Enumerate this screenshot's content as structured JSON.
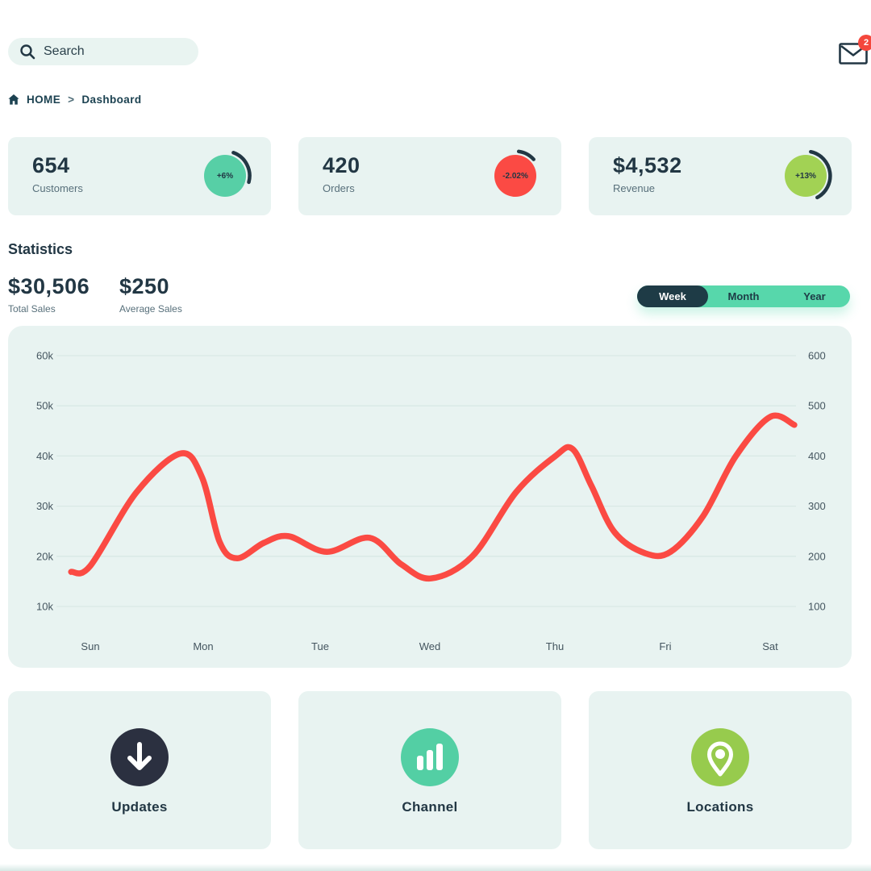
{
  "header": {
    "search_placeholder": "Search",
    "mail_badge": "2"
  },
  "breadcrumb": {
    "home": "HOME",
    "separator": ">",
    "current": "Dashboard"
  },
  "stat_cards": [
    {
      "value": "654",
      "label": "Customers",
      "delta": "+6%",
      "circle_color": "#57cfa6",
      "ring": {
        "start_deg": -70,
        "sweep_deg": 85
      }
    },
    {
      "value": "420",
      "label": "Orders",
      "delta": "-2.02%",
      "circle_color": "#fb4a44",
      "ring": {
        "start_deg": -82,
        "sweep_deg": 40
      }
    },
    {
      "value": "$4,532",
      "label": "Revenue",
      "delta": "+13%",
      "circle_color": "#a2d254",
      "ring": {
        "start_deg": -78,
        "sweep_deg": 140
      }
    }
  ],
  "statistics": {
    "heading": "Statistics",
    "summary": [
      {
        "value": "$30,506",
        "label": "Total Sales"
      },
      {
        "value": "$250",
        "label": "Average Sales"
      }
    ],
    "range_toggle": {
      "options": [
        "Week",
        "Month",
        "Year"
      ],
      "selected": "Week"
    }
  },
  "chart_data": {
    "type": "line",
    "x_labels": [
      "Sun",
      "Mon",
      "Tue",
      "Wed",
      "Thu",
      "Fri",
      "Sat"
    ],
    "series": [
      {
        "name": "Sales",
        "values": [
          18000,
          36000,
          21000,
          16000,
          40000,
          21000,
          48000
        ]
      }
    ],
    "left_axis_ticks": [
      "60k",
      "50k",
      "40k",
      "30k",
      "20k",
      "10k"
    ],
    "right_axis_ticks": [
      "600",
      "500",
      "400",
      "300",
      "200",
      "100"
    ],
    "left_axis_range": [
      10000,
      60000
    ],
    "right_axis_range": [
      100,
      600
    ],
    "grid": true,
    "legend": false,
    "line_color": "#fb4a43",
    "gridline_color": "#d9e9e5",
    "axis_text_color": "#44555f",
    "curve_samples_day_valueK": [
      [
        -0.17,
        16.9
      ],
      [
        0,
        18.1
      ],
      [
        0.41,
        32.8
      ],
      [
        0.8,
        40.5
      ],
      [
        0.99,
        35.7
      ],
      [
        1.14,
        22.9
      ],
      [
        1.29,
        19.6
      ],
      [
        1.52,
        22.7
      ],
      [
        1.73,
        24.0
      ],
      [
        2.06,
        20.9
      ],
      [
        2.45,
        23.7
      ],
      [
        2.74,
        18.4
      ],
      [
        3.01,
        15.6
      ],
      [
        3.34,
        20.0
      ],
      [
        3.69,
        32.8
      ],
      [
        4.0,
        39.9
      ],
      [
        4.16,
        41.4
      ],
      [
        4.33,
        34.1
      ],
      [
        4.54,
        24.8
      ],
      [
        4.82,
        20.6
      ],
      [
        5.05,
        20.9
      ],
      [
        5.36,
        28.0
      ],
      [
        5.67,
        39.9
      ],
      [
        6.0,
        47.8
      ],
      [
        6.23,
        46.2
      ]
    ]
  },
  "shortcuts": [
    {
      "label": "Updates",
      "icon": "download-icon",
      "circle_color": "#2b3040"
    },
    {
      "label": "Channel",
      "icon": "bar-chart-icon",
      "circle_color": "#53cfa4"
    },
    {
      "label": "Locations",
      "icon": "location-pin-icon",
      "circle_color": "#97cb4d"
    }
  ]
}
